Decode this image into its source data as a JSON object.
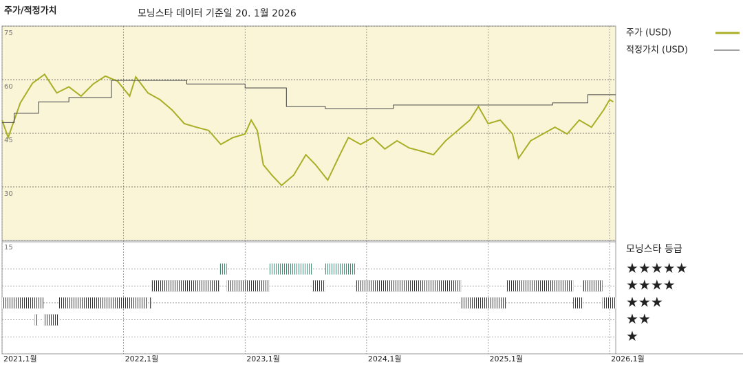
{
  "chart_data": [
    {
      "type": "line",
      "title": "주가/적정가치",
      "subtitle": "모닝스타 데이터 기준일 20. 1월 2026",
      "xlim": [
        2021,
        2026.05
      ],
      "xticks": [
        {
          "value": 2021,
          "label": "2021,1월"
        },
        {
          "value": 2022,
          "label": "2022,1월"
        },
        {
          "value": 2023,
          "label": "2023,1월"
        },
        {
          "value": 2024,
          "label": "2024,1월"
        },
        {
          "value": 2025,
          "label": "2025,1월"
        },
        {
          "value": 2026,
          "label": "2026,1월"
        }
      ],
      "ylim": [
        15,
        75
      ],
      "yticks": [
        15,
        30,
        45,
        60,
        75
      ],
      "grid": true,
      "series": [
        {
          "name": "주가 (USD)",
          "color": "#a9ae27",
          "step": false,
          "x": [
            2021,
            2021.05,
            2021.15,
            2021.25,
            2021.35,
            2021.45,
            2021.55,
            2021.65,
            2021.75,
            2021.85,
            2021.95,
            2022.05,
            2022.1,
            2022.2,
            2022.3,
            2022.4,
            2022.5,
            2022.6,
            2022.7,
            2022.8,
            2022.9,
            2023,
            2023.05,
            2023.1,
            2023.15,
            2023.22,
            2023.3,
            2023.4,
            2023.5,
            2023.58,
            2023.68,
            2023.78,
            2023.85,
            2023.95,
            2024.05,
            2024.15,
            2024.25,
            2024.35,
            2024.45,
            2024.55,
            2024.65,
            2024.75,
            2024.85,
            2024.92,
            2025,
            2025.1,
            2025.2,
            2025.25,
            2025.35,
            2025.45,
            2025.55,
            2025.65,
            2025.75,
            2025.85,
            2025.95,
            2026,
            2026.03
          ],
          "values": [
            48.7,
            43.8,
            53.5,
            59,
            61.5,
            56.3,
            58,
            55.4,
            58.8,
            61,
            59.6,
            55.4,
            60.8,
            56.3,
            54.4,
            51.5,
            47.7,
            46.7,
            45.8,
            41.9,
            43.8,
            44.8,
            48.7,
            45.8,
            36.2,
            33.3,
            30.4,
            33.3,
            39,
            36.2,
            31.9,
            39,
            43.8,
            41.9,
            43.8,
            40.6,
            42.9,
            40.9,
            40,
            39,
            42.9,
            45.8,
            48.7,
            52.5,
            47.7,
            48.7,
            44.8,
            38,
            42.9,
            44.8,
            46.7,
            44.8,
            48.7,
            46.7,
            51.5,
            54.4,
            53.8
          ]
        },
        {
          "name": "적정가치 (USD)",
          "color": "#444444",
          "step": true,
          "x": [
            2021,
            2021.1,
            2021.3,
            2021.55,
            2021.9,
            2022.52,
            2023,
            2023.34,
            2023.66,
            2024.22,
            2025.53,
            2025.82
          ],
          "values": [
            48,
            50.6,
            53.8,
            55,
            59.8,
            58.8,
            57.7,
            52.5,
            51.9,
            52.9,
            53.5,
            55.8
          ]
        }
      ]
    },
    {
      "type": "rating",
      "title": "모닝스타 등급",
      "xlim": [
        2021,
        2026.05
      ],
      "ylim": [
        0,
        6.6
      ],
      "yticks": [
        {
          "value": 5,
          "label": "★★★★★"
        },
        {
          "value": 4,
          "label": "★★★★"
        },
        {
          "value": 3,
          "label": "★★★"
        },
        {
          "value": 2,
          "label": "★★"
        },
        {
          "value": 1,
          "label": "★"
        }
      ],
      "colors": {
        "5": "#3e8c72",
        "other": "#333333"
      },
      "periods": [
        {
          "start": 2021,
          "end": 2021.34,
          "stars": 3
        },
        {
          "start": 2021.27,
          "end": 2021.3,
          "stars": 2
        },
        {
          "start": 2021.34,
          "end": 2021.47,
          "stars": 2
        },
        {
          "start": 2021.47,
          "end": 2022.19,
          "stars": 3
        },
        {
          "start": 2022.21,
          "end": 2022.23,
          "stars": 3
        },
        {
          "start": 2022.23,
          "end": 2022.79,
          "stars": 4
        },
        {
          "start": 2022.79,
          "end": 2022.85,
          "stars": 5
        },
        {
          "start": 2022.85,
          "end": 2023.2,
          "stars": 4
        },
        {
          "start": 2023.2,
          "end": 2023.55,
          "stars": 5
        },
        {
          "start": 2023.55,
          "end": 2023.66,
          "stars": 4
        },
        {
          "start": 2023.66,
          "end": 2023.91,
          "stars": 5
        },
        {
          "start": 2023.91,
          "end": 2024.78,
          "stars": 4
        },
        {
          "start": 2024.78,
          "end": 2025.15,
          "stars": 3
        },
        {
          "start": 2025.15,
          "end": 2025.7,
          "stars": 4
        },
        {
          "start": 2025.7,
          "end": 2025.78,
          "stars": 3
        },
        {
          "start": 2025.78,
          "end": 2025.94,
          "stars": 4
        },
        {
          "start": 2025.94,
          "end": 2026.05,
          "stars": 3
        }
      ]
    }
  ]
}
